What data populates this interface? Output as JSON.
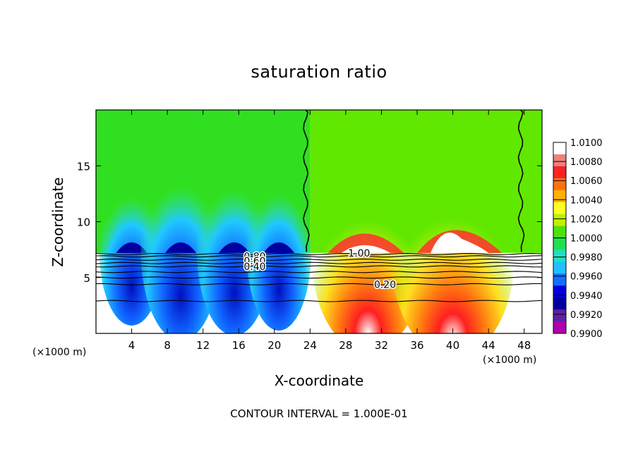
{
  "chart_data": {
    "type": "heatmap",
    "title": "saturation ratio",
    "xlabel": "X-coordinate",
    "ylabel": "Z-coordinate",
    "x_unit_label": "(×1000 m)",
    "footer": "CONTOUR INTERVAL = 1.000E-01",
    "xlim": [
      0,
      50
    ],
    "ylim": [
      0,
      20
    ],
    "x_ticks": [
      4,
      8,
      12,
      16,
      20,
      24,
      28,
      32,
      36,
      40,
      44,
      48
    ],
    "y_ticks": [
      5,
      10,
      15
    ],
    "colorbar": {
      "range": [
        0.99,
        1.01
      ],
      "labels": [
        "1.0100",
        "1.0080",
        "1.0060",
        "1.0040",
        "1.0020",
        "1.0000",
        "0.9980",
        "0.9960",
        "0.9940",
        "0.9920",
        "0.9900"
      ],
      "colors": [
        "#ffffff",
        "#f08080",
        "#ff2020",
        "#ff7010",
        "#ffb000",
        "#ffff20",
        "#c0f000",
        "#50e010",
        "#20e050",
        "#20e0c0",
        "#20c0ff",
        "#1070ff",
        "#0000e0",
        "#0000a0",
        "#6020a0",
        "#b000b0"
      ]
    },
    "contour_labels": [
      {
        "text": "0.80",
        "x": 17.8,
        "z": 6.9
      },
      {
        "text": "0.60",
        "x": 17.8,
        "z": 6.5
      },
      {
        "text": "0.40",
        "x": 17.8,
        "z": 6.0
      },
      {
        "text": "0.20",
        "x": 32.4,
        "z": 4.4
      },
      {
        "text": "1.00",
        "x": 29.5,
        "z": 7.2
      }
    ],
    "cloud_base_z": 7.2,
    "contour_levels_z": [
      2.9,
      4.4,
      5.0,
      5.5,
      6.0,
      6.3,
      6.6,
      6.9,
      7.1
    ]
  }
}
